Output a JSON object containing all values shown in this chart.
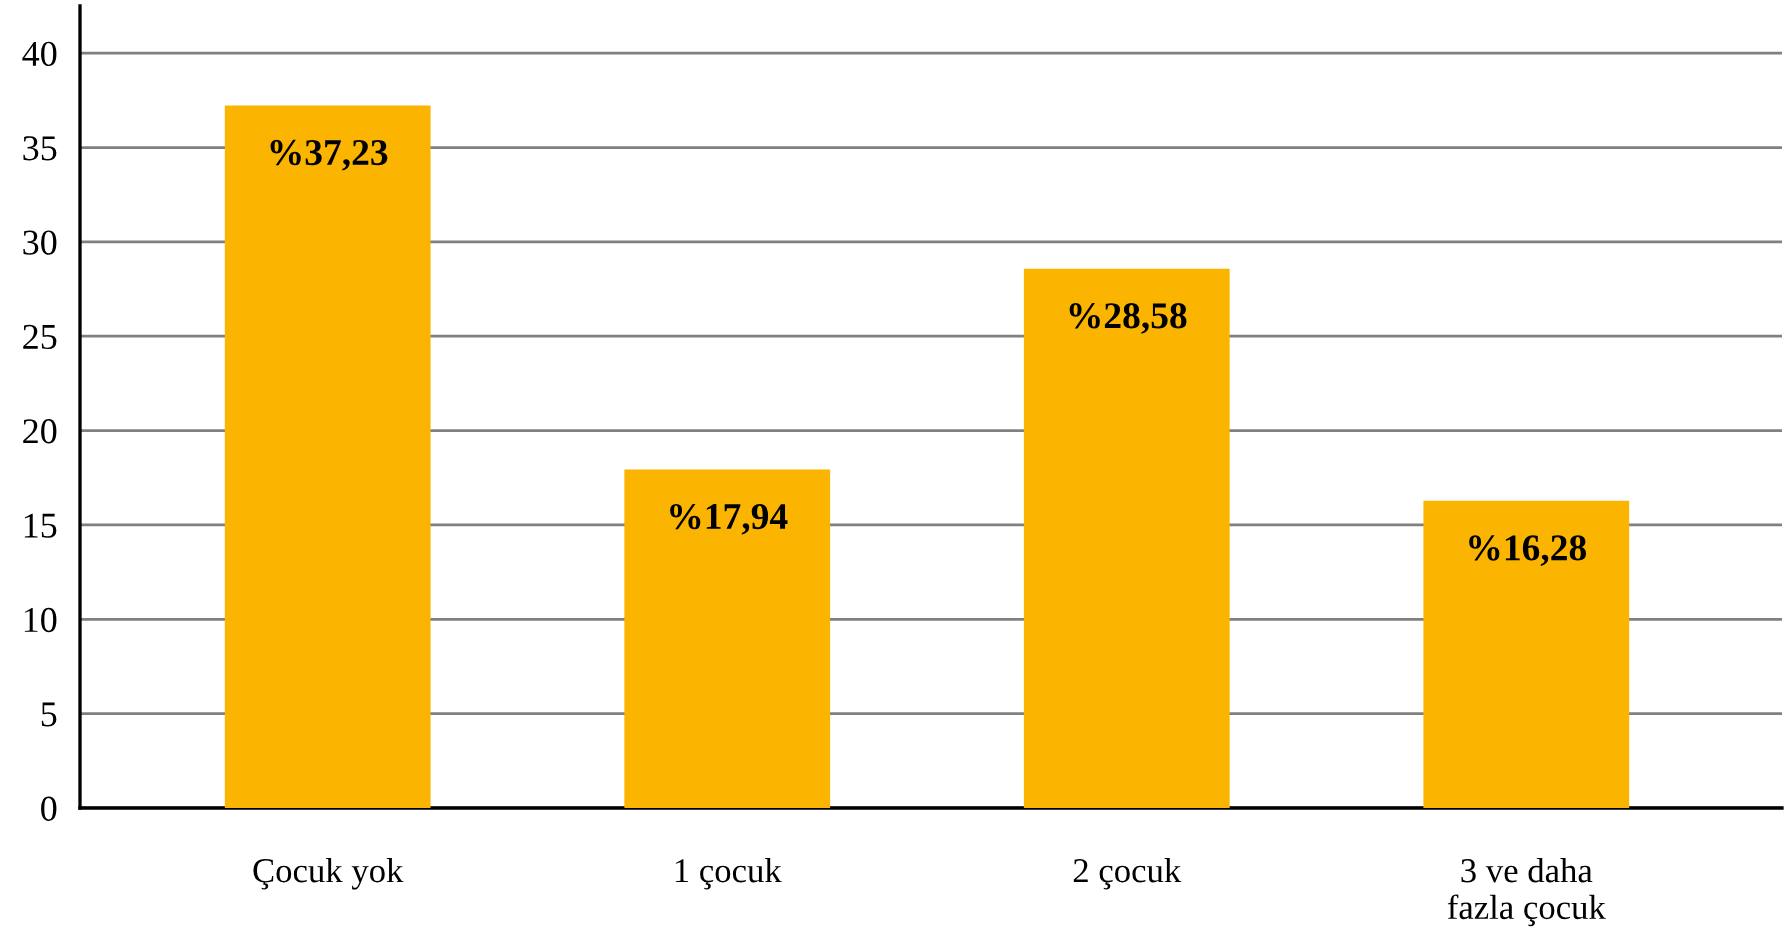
{
  "chart_data": {
    "type": "bar",
    "categories": [
      "Çocuk yok",
      "1 çocuk",
      "2 çocuk",
      "3 ve daha\nfazla çocuk"
    ],
    "values": [
      37.23,
      17.94,
      28.58,
      16.28
    ],
    "value_labels": [
      "%37,23",
      "%17,94",
      "%28,58",
      "%16,28"
    ],
    "color": "#fbb500",
    "ylim": [
      0,
      42.5
    ],
    "yticks": [
      0,
      5,
      10,
      15,
      20,
      25,
      30,
      35,
      40
    ],
    "grid": "y"
  }
}
